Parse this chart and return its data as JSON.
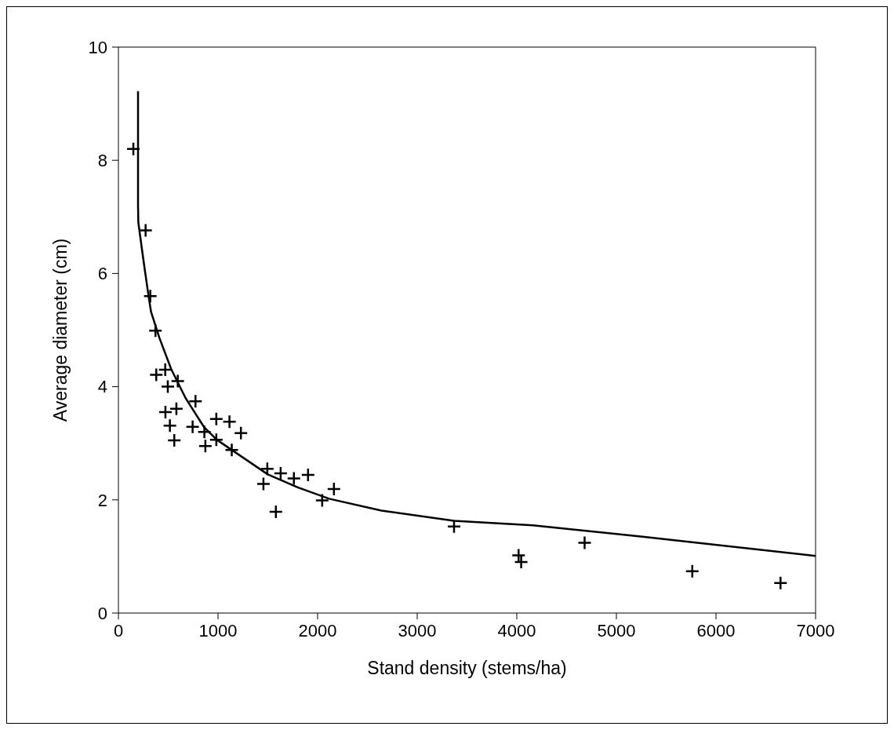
{
  "chart_data": {
    "type": "scatter",
    "xlabel": "Stand density (stems/ha)",
    "ylabel": "Average diameter (cm)",
    "xlim": [
      0,
      7000
    ],
    "xticks": [
      0,
      1000,
      2000,
      3000,
      4000,
      5000,
      6000,
      7000
    ],
    "ylim": [
      0,
      10
    ],
    "yticks": [
      0,
      2,
      4,
      6,
      8,
      10
    ],
    "grid": false,
    "legend": false,
    "marker": "cross",
    "series": [
      {
        "color": "#000000",
        "x": [
          150,
          273,
          320,
          372,
          380,
          470,
          596,
          496,
          774,
          472,
          582,
          517,
          561,
          745,
          863,
          983,
          1115,
          1230,
          873,
          983,
          1138,
          1456,
          1495,
          1581,
          1629,
          1762,
          1904,
          2046,
          2164,
          3370,
          4018,
          4044,
          4681,
          5762,
          6648
        ],
        "values": [
          8.2,
          6.76,
          5.6,
          4.99,
          4.21,
          4.3,
          4.1,
          4.0,
          3.74,
          3.55,
          3.61,
          3.31,
          3.05,
          3.29,
          3.2,
          3.43,
          3.38,
          3.18,
          2.95,
          3.06,
          2.88,
          2.28,
          2.55,
          1.79,
          2.47,
          2.38,
          2.44,
          1.99,
          2.19,
          1.53,
          1.02,
          0.9,
          1.24,
          0.74,
          0.53
        ]
      },
      {
        "type": "line",
        "color": "#000000",
        "line_style": "solid",
        "marker": "none",
        "x": [
          197,
          197,
          200,
          254,
          307,
          328,
          412,
          530,
          674,
          858,
          989,
          1198,
          1500,
          1800,
          2116,
          2641,
          3370,
          4162,
          5263,
          7000
        ],
        "values": [
          9.22,
          7.2,
          6.9,
          6.2,
          5.55,
          5.32,
          4.86,
          4.31,
          3.8,
          3.29,
          3.06,
          2.81,
          2.45,
          2.22,
          2.02,
          1.81,
          1.63,
          1.55,
          1.35,
          1.01
        ]
      }
    ]
  }
}
